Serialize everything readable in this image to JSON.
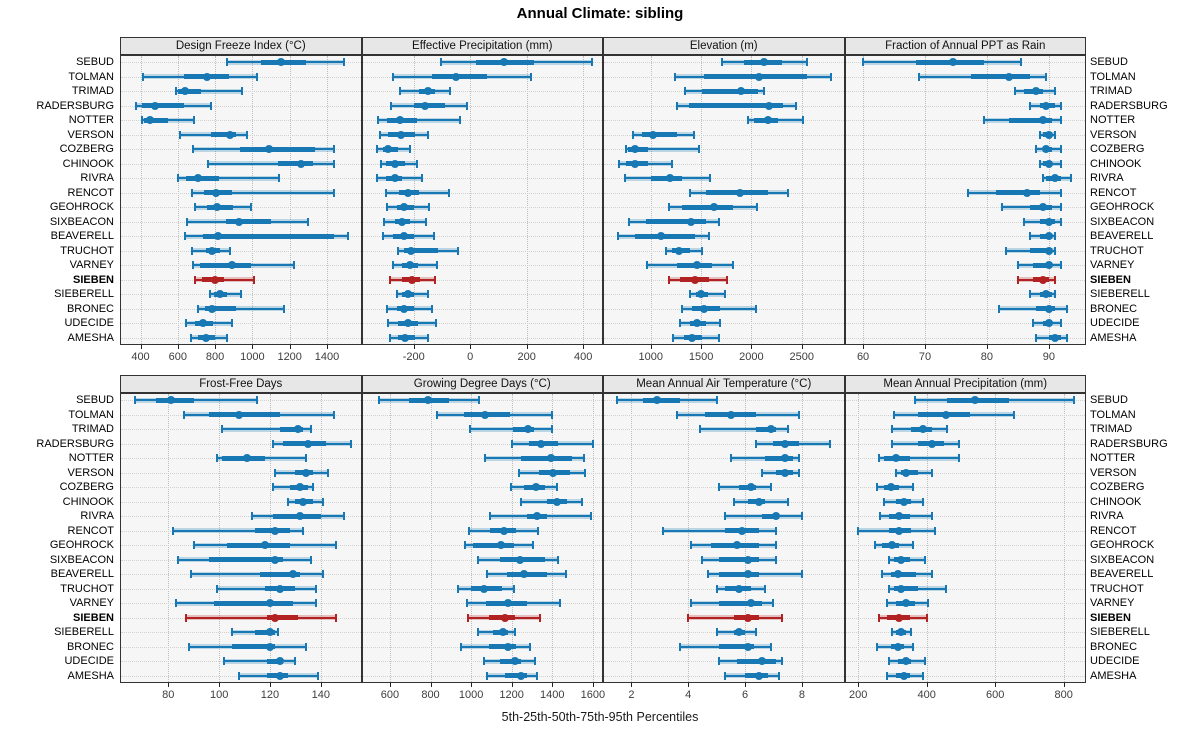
{
  "title": "Annual Climate: sibling",
  "caption": "5th-25th-50th-75th-95th Percentiles",
  "stations": [
    "SEBUD",
    "TOLMAN",
    "TRIMAD",
    "RADERSBURG",
    "NOTTER",
    "VERSON",
    "COZBERG",
    "CHINOOK",
    "RIVRA",
    "RENCOT",
    "GEOHROCK",
    "SIXBEACON",
    "BEAVERELL",
    "TRUCHOT",
    "VARNEY",
    "SIEBEN",
    "SIEBERELL",
    "BRONEC",
    "UDECIDE",
    "AMESHA"
  ],
  "highlight_station": "SIEBEN",
  "colors": {
    "accent": "#1878B4",
    "highlight": "#B22222",
    "band_alpha_hex": "42",
    "grid": "#BDBDBD",
    "strip_bg": "#E7E7E7",
    "panel_bg": "#F6F6F6",
    "border": "#333333"
  },
  "chart_data": [
    {
      "type": "percentile-dotplot",
      "title": "Design Freeze Index (°C)",
      "xlim": [
        290,
        1585
      ],
      "ticks": [
        400,
        600,
        800,
        1000,
        1200,
        1400
      ],
      "percentile_labels": [
        "5th",
        "25th",
        "50th",
        "75th",
        "95th"
      ],
      "values": [
        [
          865,
          1045,
          1155,
          1290,
          1490
        ],
        [
          415,
          635,
          755,
          875,
          1025
        ],
        [
          590,
          600,
          640,
          725,
          945
        ],
        [
          375,
          410,
          480,
          635,
          780
        ],
        [
          410,
          420,
          450,
          545,
          685
        ],
        [
          610,
          780,
          880,
          910,
          970
        ],
        [
          680,
          935,
          1090,
          1335,
          1435
        ],
        [
          760,
          1135,
          1260,
          1325,
          1440
        ],
        [
          600,
          645,
          710,
          820,
          1145
        ],
        [
          675,
          740,
          805,
          890,
          1435
        ],
        [
          690,
          755,
          810,
          895,
          990
        ],
        [
          650,
          860,
          930,
          1100,
          1300
        ],
        [
          640,
          735,
          815,
          1435,
          1510
        ],
        [
          675,
          750,
          785,
          825,
          880
        ],
        [
          680,
          720,
          890,
          990,
          1225
        ],
        [
          690,
          730,
          800,
          850,
          1010
        ],
        [
          770,
          795,
          825,
          865,
          940
        ],
        [
          710,
          745,
          785,
          910,
          1170
        ],
        [
          645,
          690,
          735,
          790,
          890
        ],
        [
          670,
          710,
          750,
          800,
          865
        ]
      ]
    },
    {
      "type": "percentile-dotplot",
      "title": "Effective Precipitation (mm)",
      "xlim": [
        -385,
        470
      ],
      "ticks": [
        -200,
        0,
        200,
        400
      ],
      "percentile_labels": [
        "5th",
        "25th",
        "50th",
        "75th",
        "95th"
      ],
      "values": [
        [
          -105,
          20,
          120,
          225,
          430
        ],
        [
          -275,
          -135,
          -50,
          60,
          215
        ],
        [
          -250,
          -180,
          -150,
          -125,
          -70
        ],
        [
          -280,
          -200,
          -160,
          -90,
          -10
        ],
        [
          -325,
          -295,
          -250,
          -190,
          -35
        ],
        [
          -320,
          -290,
          -245,
          -195,
          -150
        ],
        [
          -330,
          -310,
          -290,
          -255,
          -215
        ],
        [
          -315,
          -300,
          -268,
          -232,
          -190
        ],
        [
          -330,
          -300,
          -268,
          -240,
          -172
        ],
        [
          -300,
          -252,
          -220,
          -180,
          -75
        ],
        [
          -295,
          -260,
          -235,
          -200,
          -145
        ],
        [
          -305,
          -268,
          -240,
          -215,
          -155
        ],
        [
          -310,
          -274,
          -236,
          -198,
          -130
        ],
        [
          -255,
          -236,
          -210,
          -115,
          -45
        ],
        [
          -274,
          -243,
          -213,
          -186,
          -118
        ],
        [
          -285,
          -240,
          -205,
          -177,
          -126
        ],
        [
          -260,
          -240,
          -220,
          -198,
          -150
        ],
        [
          -293,
          -259,
          -234,
          -198,
          -134
        ],
        [
          -290,
          -255,
          -220,
          -186,
          -123
        ],
        [
          -285,
          -255,
          -232,
          -195,
          -150
        ]
      ]
    },
    {
      "type": "percentile-dotplot",
      "title": "Elevation (m)",
      "xlim": [
        525,
        2925
      ],
      "ticks": [
        1000,
        1500,
        2000,
        2500
      ],
      "percentile_labels": [
        "5th",
        "25th",
        "50th",
        "75th",
        "95th"
      ],
      "values": [
        [
          1710,
          1930,
          2125,
          2300,
          2550
        ],
        [
          1240,
          1525,
          2080,
          2550,
          2795
        ],
        [
          1340,
          1510,
          1895,
          2065,
          2125
        ],
        [
          1260,
          1375,
          2170,
          2315,
          2440
        ],
        [
          1970,
          2030,
          2160,
          2265,
          2515
        ],
        [
          820,
          915,
          1025,
          1260,
          1425
        ],
        [
          750,
          775,
          840,
          975,
          1480
        ],
        [
          680,
          755,
          840,
          975,
          1215
        ],
        [
          745,
          1005,
          1190,
          1310,
          1585
        ],
        [
          1385,
          1545,
          1890,
          2165,
          2360
        ],
        [
          1180,
          1315,
          1630,
          1820,
          2060
        ],
        [
          780,
          950,
          1400,
          1550,
          1680
        ],
        [
          670,
          845,
          1100,
          1440,
          1580
        ],
        [
          1155,
          1215,
          1280,
          1385,
          1510
        ],
        [
          965,
          1265,
          1460,
          1610,
          1820
        ],
        [
          1180,
          1295,
          1440,
          1575,
          1755
        ],
        [
          1385,
          1445,
          1500,
          1570,
          1735
        ],
        [
          1315,
          1405,
          1525,
          1690,
          2050
        ],
        [
          1295,
          1385,
          1460,
          1545,
          1690
        ],
        [
          1220,
          1330,
          1410,
          1505,
          1680
        ]
      ]
    },
    {
      "type": "percentile-dotplot",
      "title": "Fraction of Annual PPT as Rain",
      "xlim": [
        57,
        96
      ],
      "ticks": [
        60,
        70,
        80,
        90
      ],
      "percentile_labels": [
        "5th",
        "25th",
        "50th",
        "75th",
        "95th"
      ],
      "values": [
        [
          60,
          68.5,
          74.5,
          79.5,
          85.5
        ],
        [
          69,
          77.5,
          83.5,
          87,
          89.5
        ],
        [
          84.5,
          86,
          88,
          89,
          91
        ],
        [
          87,
          88.5,
          89.5,
          91,
          92
        ],
        [
          79.5,
          83.5,
          89,
          90.5,
          92
        ],
        [
          88.5,
          89,
          90,
          90.5,
          91
        ],
        [
          88,
          89,
          89.5,
          90.5,
          92
        ],
        [
          88.5,
          89,
          90,
          90.5,
          92
        ],
        [
          89,
          89.5,
          91,
          92,
          93.5
        ],
        [
          77,
          81.5,
          86.5,
          88.5,
          92
        ],
        [
          82.5,
          87,
          89,
          90.5,
          92
        ],
        [
          86,
          88.5,
          90,
          91,
          92
        ],
        [
          87,
          88.5,
          90,
          90.5,
          91
        ],
        [
          83,
          87,
          90,
          90.5,
          91
        ],
        [
          85,
          87.5,
          90,
          90.5,
          92
        ],
        [
          85,
          87.5,
          89,
          90,
          91
        ],
        [
          87,
          88.5,
          89.5,
          90.5,
          91
        ],
        [
          82,
          88,
          90,
          91,
          93
        ],
        [
          87.5,
          89,
          90,
          90.5,
          92
        ],
        [
          88,
          90,
          91,
          92,
          93
        ]
      ]
    },
    {
      "type": "percentile-dotplot",
      "title": "Frost-Free Days",
      "xlim": [
        61,
        156
      ],
      "ticks": [
        80,
        100,
        120,
        140
      ],
      "percentile_labels": [
        "5th",
        "25th",
        "50th",
        "75th",
        "95th"
      ],
      "values": [
        [
          67,
          75,
          81,
          90,
          115
        ],
        [
          86,
          96,
          108,
          124,
          145
        ],
        [
          101,
          124,
          131,
          133,
          136
        ],
        [
          121,
          125,
          135,
          142,
          152
        ],
        [
          99,
          101,
          111,
          118,
          134
        ],
        [
          122,
          130,
          134,
          137,
          143
        ],
        [
          121,
          128,
          132,
          135,
          137
        ],
        [
          127,
          130,
          133,
          137,
          141
        ],
        [
          113,
          121,
          132,
          140,
          149
        ],
        [
          82,
          114,
          122,
          128,
          133
        ],
        [
          90,
          103,
          118,
          128,
          146
        ],
        [
          84,
          96,
          122,
          125,
          136
        ],
        [
          89,
          116,
          129,
          132,
          141
        ],
        [
          99,
          118,
          124,
          130,
          138
        ],
        [
          83,
          98,
          120,
          129,
          138
        ],
        [
          87,
          119,
          122,
          131,
          146
        ],
        [
          105,
          114,
          120,
          122,
          123
        ],
        [
          88,
          105,
          120,
          122,
          134
        ],
        [
          102,
          119,
          124,
          125,
          130
        ],
        [
          108,
          119,
          124,
          127,
          139
        ]
      ]
    },
    {
      "type": "percentile-dotplot",
      "title": "Growing Degree Days (°C)",
      "xlim": [
        460,
        1650
      ],
      "ticks": [
        600,
        800,
        1000,
        1200,
        1400,
        1600
      ],
      "percentile_labels": [
        "5th",
        "25th",
        "50th",
        "75th",
        "95th"
      ],
      "values": [
        [
          545,
          695,
          790,
          890,
          1040
        ],
        [
          830,
          965,
          1070,
          1190,
          1400
        ],
        [
          995,
          1205,
          1280,
          1310,
          1400
        ],
        [
          1200,
          1285,
          1345,
          1430,
          1600
        ],
        [
          1070,
          1245,
          1395,
          1495,
          1555
        ],
        [
          1235,
          1335,
          1405,
          1485,
          1560
        ],
        [
          1195,
          1260,
          1320,
          1365,
          1425
        ],
        [
          1245,
          1375,
          1425,
          1475,
          1545
        ],
        [
          1095,
          1275,
          1325,
          1375,
          1590
        ],
        [
          990,
          1095,
          1160,
          1220,
          1330
        ],
        [
          970,
          1010,
          1145,
          1210,
          1305
        ],
        [
          1035,
          1140,
          1240,
          1365,
          1430
        ],
        [
          1080,
          1175,
          1260,
          1375,
          1470
        ],
        [
          935,
          1000,
          1065,
          1150,
          1210
        ],
        [
          980,
          1075,
          1180,
          1275,
          1440
        ],
        [
          985,
          1090,
          1165,
          1215,
          1340
        ],
        [
          1035,
          1110,
          1155,
          1180,
          1215
        ],
        [
          950,
          1090,
          1180,
          1220,
          1290
        ],
        [
          1065,
          1140,
          1215,
          1245,
          1315
        ],
        [
          1080,
          1165,
          1245,
          1275,
          1325
        ]
      ]
    },
    {
      "type": "percentile-dotplot",
      "title": "Mean Annual Air Temperature (°C)",
      "xlim": [
        1.0,
        9.5
      ],
      "ticks": [
        2,
        4,
        6,
        8
      ],
      "percentile_labels": [
        "5th",
        "25th",
        "50th",
        "75th",
        "95th"
      ],
      "values": [
        [
          1.5,
          2.4,
          2.9,
          3.7,
          5.0
        ],
        [
          3.6,
          4.6,
          5.5,
          6.4,
          7.9
        ],
        [
          4.4,
          6.4,
          6.9,
          7.1,
          7.5
        ],
        [
          6.4,
          7.0,
          7.4,
          7.9,
          9.0
        ],
        [
          5.5,
          6.7,
          7.4,
          7.7,
          7.9
        ],
        [
          6.6,
          7.1,
          7.4,
          7.7,
          7.9
        ],
        [
          5.1,
          5.8,
          6.2,
          6.4,
          6.9
        ],
        [
          5.6,
          6.1,
          6.5,
          6.7,
          7.5
        ],
        [
          5.3,
          6.6,
          7.1,
          7.2,
          8.0
        ],
        [
          3.1,
          5.3,
          5.9,
          6.5,
          7.1
        ],
        [
          4.1,
          4.8,
          5.7,
          6.5,
          7.1
        ],
        [
          4.5,
          5.1,
          6.1,
          6.5,
          7.1
        ],
        [
          4.7,
          5.1,
          6.1,
          6.5,
          8.0
        ],
        [
          5.0,
          5.3,
          5.8,
          6.2,
          6.7
        ],
        [
          4.1,
          5.1,
          6.2,
          6.6,
          7.0
        ],
        [
          4.0,
          5.6,
          6.1,
          6.5,
          7.3
        ],
        [
          5.0,
          5.6,
          5.8,
          6.0,
          6.4
        ],
        [
          3.7,
          5.1,
          6.1,
          6.3,
          6.9
        ],
        [
          5.1,
          5.7,
          6.6,
          7.1,
          7.3
        ],
        [
          5.3,
          6.0,
          6.5,
          6.8,
          7.2
        ]
      ]
    },
    {
      "type": "percentile-dotplot",
      "title": "Mean Annual Precipitation (mm)",
      "xlim": [
        160,
        865
      ],
      "ticks": [
        200,
        400,
        600,
        800
      ],
      "percentile_labels": [
        "5th",
        "25th",
        "50th",
        "75th",
        "95th"
      ],
      "values": [
        [
          365,
          460,
          540,
          640,
          830
        ],
        [
          305,
          375,
          455,
          525,
          655
        ],
        [
          300,
          355,
          390,
          415,
          460
        ],
        [
          300,
          375,
          415,
          450,
          495
        ],
        [
          260,
          275,
          310,
          350,
          495
        ],
        [
          310,
          325,
          340,
          375,
          415
        ],
        [
          255,
          275,
          295,
          320,
          360
        ],
        [
          275,
          310,
          335,
          355,
          390
        ],
        [
          265,
          290,
          320,
          350,
          415
        ],
        [
          200,
          290,
          320,
          355,
          425
        ],
        [
          250,
          270,
          300,
          320,
          360
        ],
        [
          290,
          305,
          325,
          350,
          395
        ],
        [
          270,
          295,
          315,
          370,
          415
        ],
        [
          290,
          305,
          325,
          375,
          455
        ],
        [
          285,
          310,
          340,
          365,
          405
        ],
        [
          260,
          285,
          320,
          350,
          400
        ],
        [
          300,
          310,
          325,
          340,
          355
        ],
        [
          255,
          295,
          315,
          335,
          360
        ],
        [
          290,
          315,
          340,
          355,
          395
        ],
        [
          285,
          310,
          335,
          350,
          390
        ]
      ]
    }
  ]
}
